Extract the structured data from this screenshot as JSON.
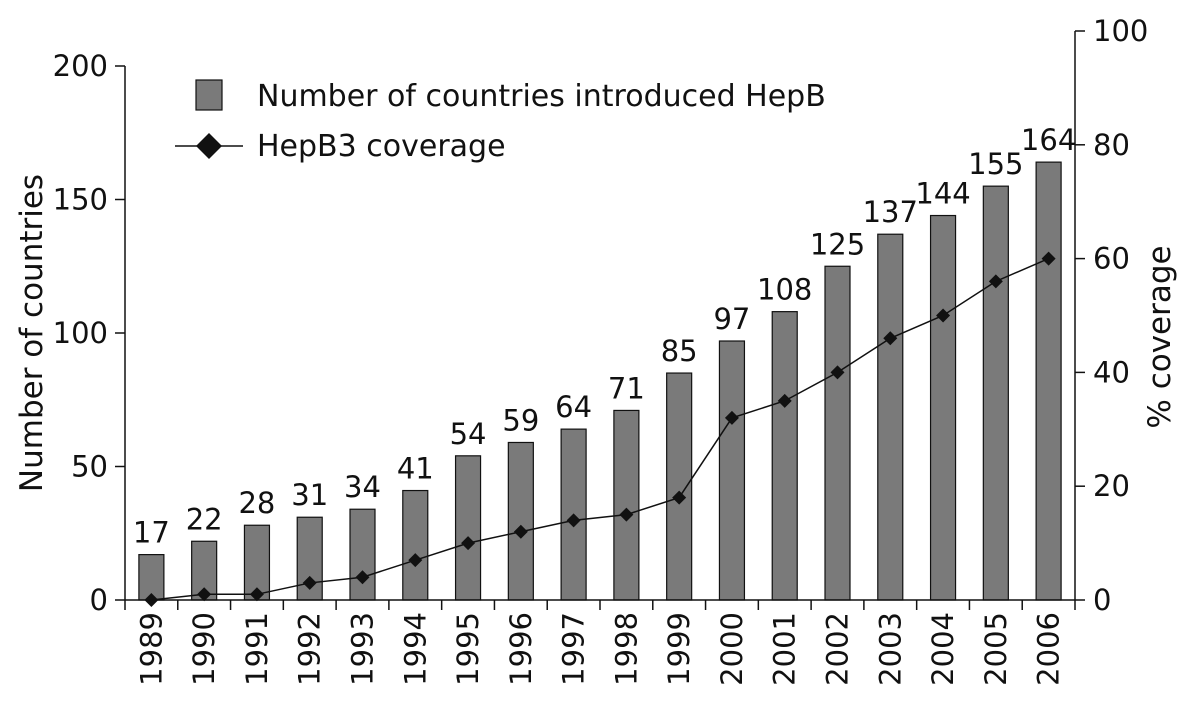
{
  "chart_data": {
    "type": "bar",
    "categories": [
      "1989",
      "1990",
      "1991",
      "1992",
      "1993",
      "1994",
      "1995",
      "1996",
      "1997",
      "1998",
      "1999",
      "2000",
      "2001",
      "2002",
      "2003",
      "2004",
      "2005",
      "2006"
    ],
    "series": [
      {
        "name": "Number of countries introduced HepB",
        "type": "bar",
        "axis": "left",
        "values": [
          17,
          22,
          28,
          31,
          34,
          41,
          54,
          59,
          64,
          71,
          85,
          97,
          108,
          125,
          137,
          144,
          155,
          164
        ],
        "color": "#7a7a7a"
      },
      {
        "name": "HepB3 coverage",
        "type": "line",
        "axis": "right",
        "marker": "diamond",
        "values": [
          0,
          1,
          1,
          3,
          4,
          7,
          10,
          12,
          14,
          15,
          18,
          32,
          35,
          40,
          46,
          50,
          56,
          60
        ],
        "color": "#111111"
      }
    ],
    "ylabel": "Number of countries",
    "y2label": "% coverage",
    "ylim": [
      0,
      200
    ],
    "y2lim": [
      0,
      100
    ],
    "yticks": [
      0,
      50,
      100,
      150,
      200
    ],
    "y2ticks": [
      0,
      20,
      40,
      60,
      80,
      100
    ],
    "data_labels": true,
    "grid": false,
    "legend_position": "top-left"
  }
}
